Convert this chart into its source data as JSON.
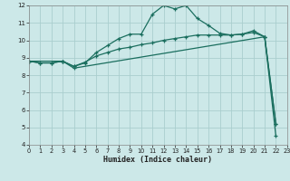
{
  "title": "",
  "xlabel": "Humidex (Indice chaleur)",
  "ylabel": "",
  "background_color": "#cce8e8",
  "grid_color": "#aacece",
  "line_color": "#1a6e5e",
  "x_min": 0,
  "x_max": 23,
  "y_min": 4,
  "y_max": 12,
  "line1_x": [
    0,
    1,
    2,
    3,
    4,
    5,
    6,
    7,
    8,
    9,
    10,
    11,
    12,
    13,
    14,
    15,
    16,
    17,
    18,
    19,
    20,
    21,
    22
  ],
  "line1_y": [
    8.8,
    8.7,
    8.7,
    8.8,
    8.5,
    8.7,
    9.3,
    9.7,
    10.1,
    10.35,
    10.35,
    11.5,
    12.0,
    11.8,
    12.0,
    11.25,
    10.85,
    10.4,
    10.3,
    10.35,
    10.55,
    10.2,
    5.2
  ],
  "line2_x": [
    0,
    1,
    2,
    3,
    4,
    5,
    6,
    7,
    8,
    9,
    10,
    11,
    12,
    13,
    14,
    15,
    16,
    17,
    18,
    19,
    20,
    21,
    22
  ],
  "line2_y": [
    8.8,
    8.7,
    8.7,
    8.8,
    8.5,
    8.75,
    9.1,
    9.3,
    9.5,
    9.6,
    9.75,
    9.85,
    10.0,
    10.1,
    10.2,
    10.3,
    10.3,
    10.3,
    10.3,
    10.35,
    10.45,
    10.2,
    5.2
  ],
  "line3_x": [
    0,
    3,
    4,
    21,
    22
  ],
  "line3_y": [
    8.8,
    8.8,
    8.4,
    10.2,
    4.5
  ],
  "figsize": [
    3.2,
    2.0
  ],
  "dpi": 100
}
